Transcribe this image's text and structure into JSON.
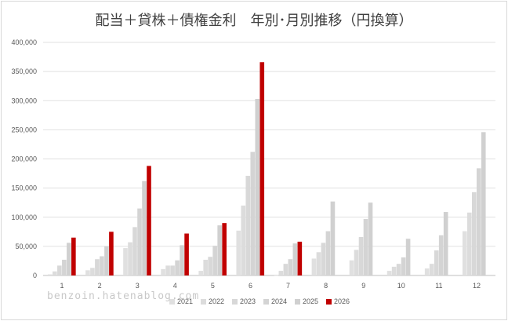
{
  "chart_data": {
    "type": "bar",
    "title": "配当＋貸株＋債権金利　年別･月別推移（円換算）",
    "categories": [
      "1",
      "2",
      "3",
      "4",
      "5",
      "6",
      "7",
      "8",
      "9",
      "10",
      "11",
      "12"
    ],
    "y_ticks": [
      "0",
      "50,000",
      "100,000",
      "150,000",
      "200,000",
      "250,000",
      "300,000",
      "350,000",
      "400,000"
    ],
    "ylim": [
      0,
      400000
    ],
    "grid": true,
    "legend_position": "bottom",
    "colors": {
      "series": [
        "#e0e0e0",
        "#dcdcdc",
        "#d8d8d8",
        "#d4d4d4",
        "#d0d0d0",
        "#c00000"
      ],
      "grid": "#e0e0e0",
      "axis": "#bfbfbf"
    },
    "series": [
      {
        "name": "2021",
        "values": [
          2000,
          9000,
          47000,
          11000,
          8000,
          77000,
          0,
          29000,
          26000,
          8000,
          12000,
          76000
        ]
      },
      {
        "name": "2022",
        "values": [
          7000,
          13000,
          57000,
          17000,
          27000,
          120000,
          8000,
          40000,
          44000,
          15000,
          20000,
          108000
        ]
      },
      {
        "name": "2023",
        "values": [
          17000,
          28000,
          83000,
          17000,
          32000,
          171000,
          20000,
          56000,
          66000,
          20000,
          43000,
          143000
        ]
      },
      {
        "name": "2024",
        "values": [
          27000,
          33000,
          115000,
          26000,
          51000,
          212000,
          28000,
          76000,
          97000,
          31000,
          69000,
          184000
        ]
      },
      {
        "name": "2025",
        "values": [
          56000,
          50000,
          162000,
          52000,
          86000,
          303000,
          55000,
          127000,
          125000,
          63000,
          109000,
          246000
        ]
      },
      {
        "name": "2026",
        "values": [
          65000,
          75000,
          188000,
          72000,
          90000,
          366000,
          58000,
          null,
          null,
          null,
          null,
          null
        ]
      }
    ]
  },
  "watermark": "benzoin.hatenablog.com"
}
